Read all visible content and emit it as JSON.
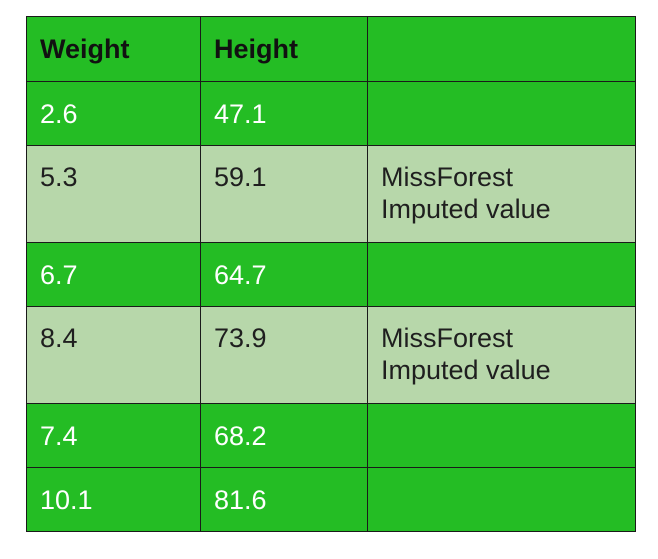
{
  "table": {
    "headers": [
      "Weight",
      "Height",
      ""
    ],
    "rows": [
      {
        "type": "observed",
        "weight": "2.6",
        "height": "47.1",
        "note": []
      },
      {
        "type": "imputed",
        "weight": "5.3",
        "height": "59.1",
        "note": [
          "MissForest",
          "Imputed value"
        ]
      },
      {
        "type": "observed",
        "weight": "6.7",
        "height": "64.7",
        "note": []
      },
      {
        "type": "imputed",
        "weight": "8.4",
        "height": "73.9",
        "note": [
          "MissForest",
          "Imputed value"
        ]
      },
      {
        "type": "observed",
        "weight": "7.4",
        "height": "68.2",
        "note": []
      },
      {
        "type": "observed",
        "weight": "10.1",
        "height": "81.6",
        "note": []
      }
    ]
  },
  "colors": {
    "observed_background": "#24bd24",
    "imputed_background": "#b7d7aa",
    "border": "#1a1a1a",
    "observed_text": "#ffffff",
    "imputed_text": "#1f1f1f",
    "header_text": "#111111"
  }
}
